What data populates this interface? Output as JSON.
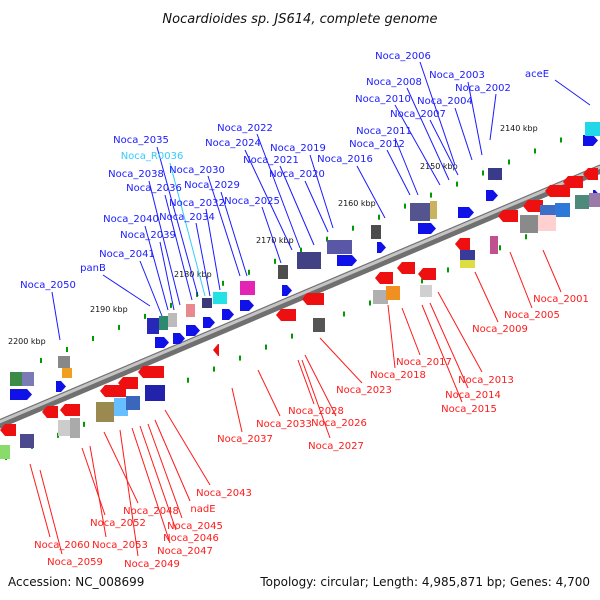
{
  "title": "Nocardioides sp. JS614, complete genome",
  "footer": {
    "accession": "Accession: NC_008699",
    "summary": "Topology: circular; Length: 4,985,871 bp; Genes: 4,700"
  },
  "kbp_ticks": [
    "2140 kbp",
    "2150 kbp",
    "2160 kbp",
    "2170 kbp",
    "2180 kbp",
    "2190 kbp",
    "2200 kbp"
  ],
  "colors": {
    "forward_label": "#1a1aff",
    "reverse_label": "#ff1a1a",
    "rna_label": "#33ccff",
    "backbone": "#888888",
    "tick": "#009900"
  },
  "forward_genes": [
    "aceE",
    "Noca_2002",
    "Noca_2003",
    "Noca_2004",
    "Noca_2006",
    "Noca_2007",
    "Noca_2008",
    "Noca_2010",
    "Noca_2011",
    "Noca_2012",
    "Noca_2016",
    "Noca_2019",
    "Noca_2020",
    "Noca_2021",
    "Noca_2022",
    "Noca_2024",
    "Noca_2025",
    "Noca_2029",
    "Noca_2030",
    "Noca_2032",
    "Noca_2034",
    "Noca_2035",
    "Noca_2036",
    "Noca_2038",
    "Noca_2039",
    "Noca_2040",
    "Noca_2041",
    "panB",
    "Noca_2050"
  ],
  "rna_genes": [
    "Noca_R0036"
  ],
  "reverse_genes": [
    "Noca_2001",
    "Noca_2005",
    "Noca_2009",
    "Noca_2013",
    "Noca_2014",
    "Noca_2015",
    "Noca_2017",
    "Noca_2018",
    "Noca_2023",
    "Noca_2026",
    "Noca_2027",
    "Noca_2028",
    "Noca_2033",
    "Noca_2037",
    "Noca_2043",
    "nadE",
    "Noca_2045",
    "Noca_2046",
    "Noca_2047",
    "Noca_2048",
    "Noca_2049",
    "Noca_2052",
    "Noca_2053",
    "Noca_2059",
    "Noca_2060"
  ]
}
